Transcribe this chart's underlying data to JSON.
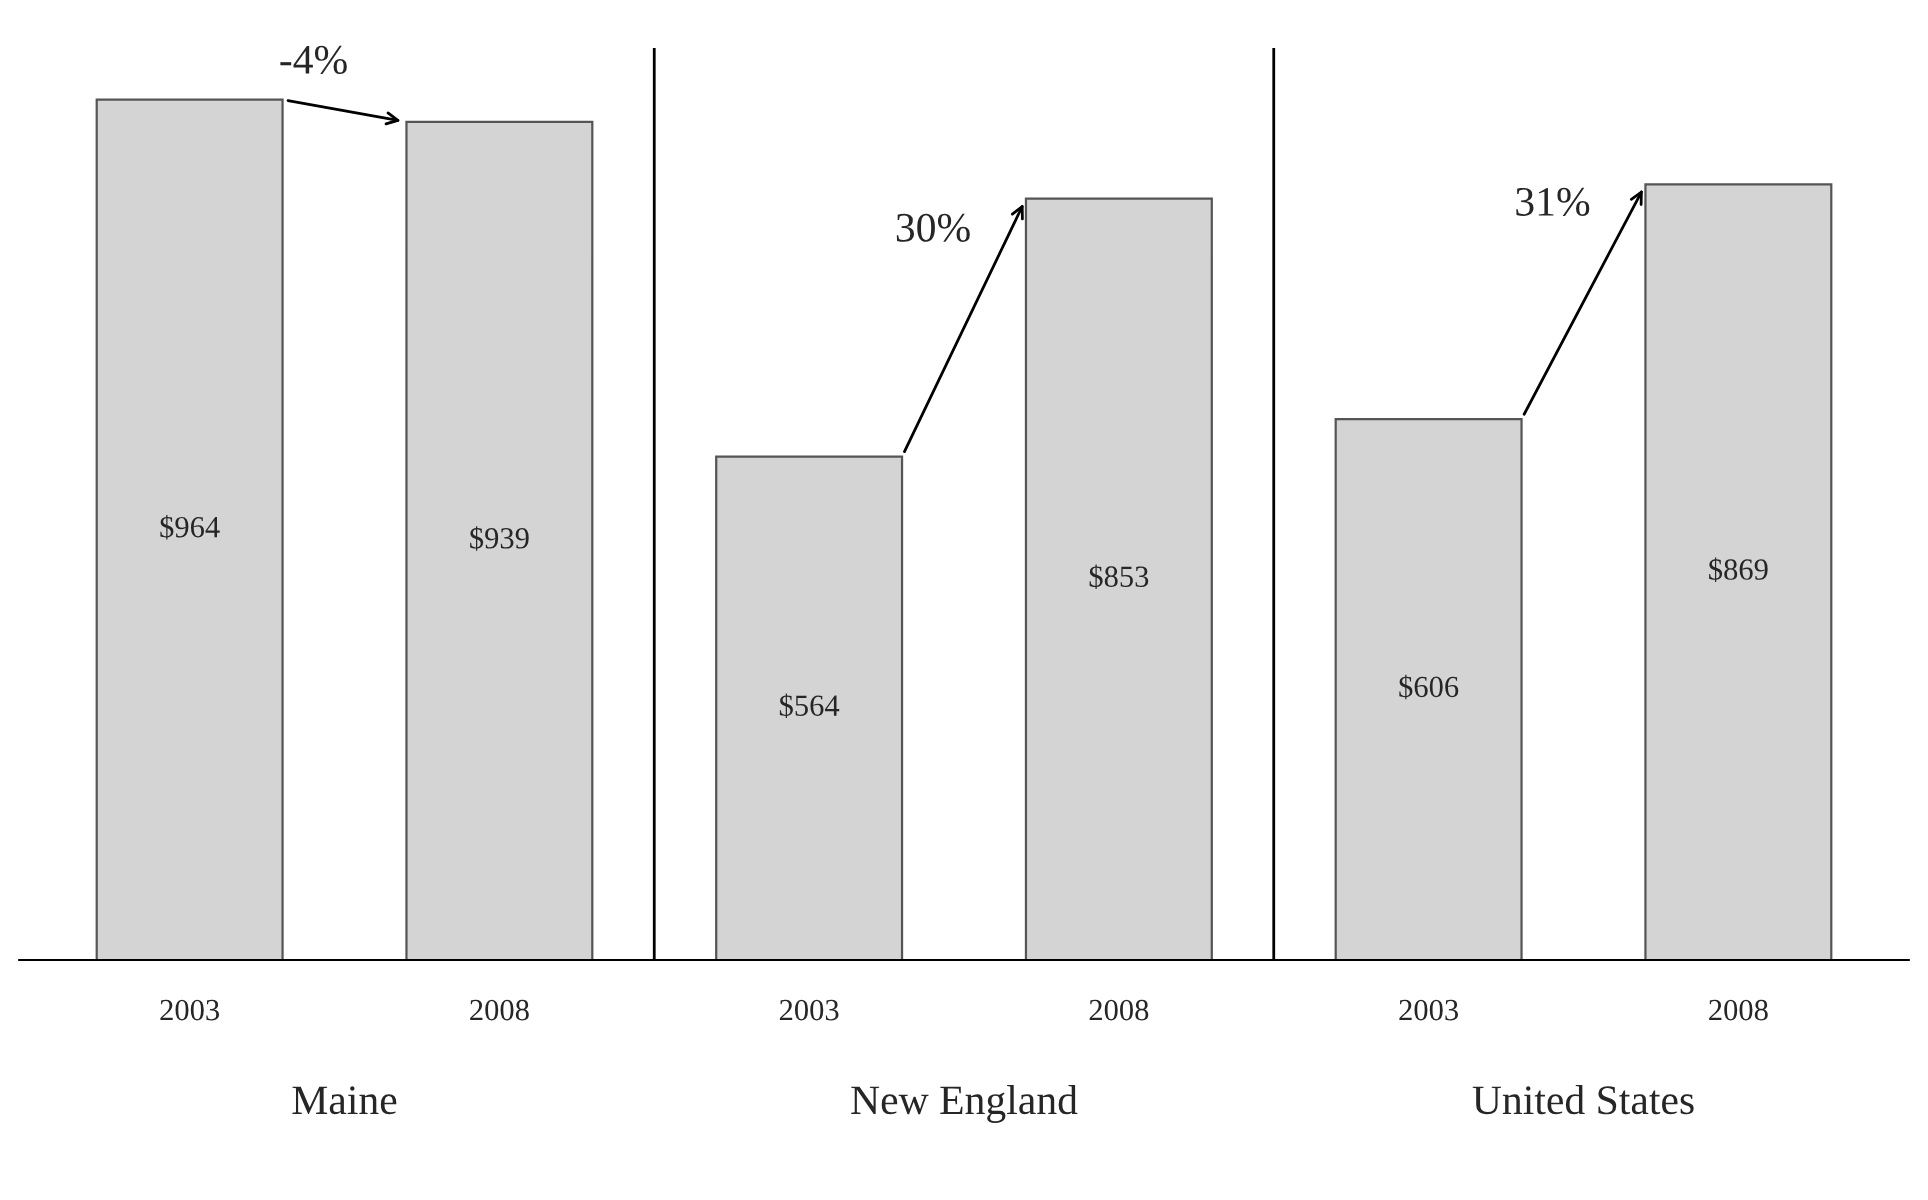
{
  "chart_data": {
    "type": "bar",
    "categories": [
      "2003",
      "2008",
      "2003",
      "2008",
      "2003",
      "2008"
    ],
    "values": [
      964,
      939,
      564,
      853,
      606,
      869
    ],
    "value_labels": [
      "$964",
      "$939",
      "$564",
      "$853",
      "$606",
      "$869"
    ],
    "color": "#d4d4d4",
    "annotations": [
      "Maine",
      "New England",
      "United States",
      "-4%",
      "30%",
      "31%"
    ],
    "grid": false
  }
}
